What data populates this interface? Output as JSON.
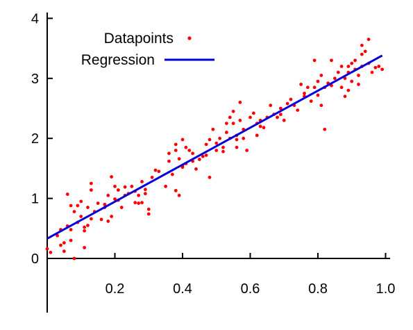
{
  "chart_data": {
    "type": "scatter",
    "title": "",
    "xlabel": "",
    "ylabel": "",
    "xlim": [
      0,
      1.0
    ],
    "ylim": [
      0,
      4
    ],
    "x_ticks": [
      0.2,
      0.4,
      0.6,
      0.8,
      1.0
    ],
    "x_tick_labels": [
      "0.2",
      "0.4",
      "0.6",
      "0.8",
      "1.0"
    ],
    "y_ticks": [
      0,
      1,
      2,
      3,
      4
    ],
    "y_tick_labels": [
      "0",
      "1",
      "2",
      "3",
      "4"
    ],
    "grid": false,
    "legend_position": "top-left",
    "legend": [
      "Datapoints",
      "Regression"
    ],
    "series": [
      {
        "name": "Datapoints",
        "kind": "scatter",
        "color": "#ff0000",
        "points": [
          [
            0.0,
            0.16
          ],
          [
            0.01,
            0.1
          ],
          [
            0.03,
            0.38
          ],
          [
            0.04,
            0.48
          ],
          [
            0.04,
            0.22
          ],
          [
            0.05,
            0.26
          ],
          [
            0.05,
            0.12
          ],
          [
            0.06,
            0.54
          ],
          [
            0.06,
            1.07
          ],
          [
            0.07,
            0.48
          ],
          [
            0.07,
            0.3
          ],
          [
            0.08,
            0.78
          ],
          [
            0.08,
            0.0
          ],
          [
            0.09,
            0.88
          ],
          [
            0.09,
            0.6
          ],
          [
            0.1,
            0.95
          ],
          [
            0.1,
            0.7
          ],
          [
            0.11,
            0.46
          ],
          [
            0.11,
            0.18
          ],
          [
            0.12,
            0.85
          ],
          [
            0.12,
            0.55
          ],
          [
            0.13,
            1.25
          ],
          [
            0.13,
            1.14
          ],
          [
            0.13,
            0.66
          ],
          [
            0.14,
            0.78
          ],
          [
            0.15,
            0.92
          ],
          [
            0.16,
            0.65
          ],
          [
            0.17,
            0.85
          ],
          [
            0.18,
            1.05
          ],
          [
            0.18,
            0.62
          ],
          [
            0.19,
            0.7
          ],
          [
            0.19,
            1.36
          ],
          [
            0.2,
            0.99
          ],
          [
            0.2,
            1.2
          ],
          [
            0.21,
            0.97
          ],
          [
            0.21,
            1.14
          ],
          [
            0.22,
            0.85
          ],
          [
            0.23,
            1.05
          ],
          [
            0.23,
            1.19
          ],
          [
            0.24,
            1.08
          ],
          [
            0.25,
            1.2
          ],
          [
            0.26,
            1.12
          ],
          [
            0.26,
            0.93
          ],
          [
            0.27,
            1.05
          ],
          [
            0.27,
            0.92
          ],
          [
            0.28,
            0.93
          ],
          [
            0.28,
            1.28
          ],
          [
            0.29,
            1.08
          ],
          [
            0.3,
            0.82
          ],
          [
            0.3,
            0.74
          ],
          [
            0.31,
            1.35
          ],
          [
            0.32,
            1.47
          ],
          [
            0.33,
            1.45
          ],
          [
            0.35,
            1.2
          ],
          [
            0.36,
            1.75
          ],
          [
            0.36,
            1.62
          ],
          [
            0.37,
            1.4
          ],
          [
            0.38,
            1.9
          ],
          [
            0.38,
            1.8
          ],
          [
            0.38,
            1.13
          ],
          [
            0.39,
            1.05
          ],
          [
            0.39,
            1.66
          ],
          [
            0.4,
            1.52
          ],
          [
            0.4,
            1.98
          ],
          [
            0.41,
            1.58
          ],
          [
            0.41,
            1.85
          ],
          [
            0.42,
            1.8
          ],
          [
            0.43,
            1.75
          ],
          [
            0.43,
            1.62
          ],
          [
            0.44,
            1.49
          ],
          [
            0.45,
            1.65
          ],
          [
            0.46,
            1.7
          ],
          [
            0.47,
            1.9
          ],
          [
            0.47,
            1.72
          ],
          [
            0.48,
            1.98
          ],
          [
            0.48,
            1.35
          ],
          [
            0.49,
            2.15
          ],
          [
            0.5,
            1.92
          ],
          [
            0.51,
            2.0
          ],
          [
            0.52,
            1.85
          ],
          [
            0.52,
            1.78
          ],
          [
            0.53,
            2.25
          ],
          [
            0.53,
            2.1
          ],
          [
            0.54,
            2.0
          ],
          [
            0.54,
            2.35
          ],
          [
            0.55,
            2.25
          ],
          [
            0.55,
            2.45
          ],
          [
            0.56,
            2.05
          ],
          [
            0.56,
            1.98
          ],
          [
            0.56,
            1.85
          ],
          [
            0.57,
            2.3
          ],
          [
            0.57,
            2.6
          ],
          [
            0.58,
            2.15
          ],
          [
            0.58,
            2.0
          ],
          [
            0.59,
            1.8
          ],
          [
            0.6,
            2.35
          ],
          [
            0.61,
            2.42
          ],
          [
            0.62,
            2.25
          ],
          [
            0.63,
            2.3
          ],
          [
            0.63,
            2.2
          ],
          [
            0.64,
            2.18
          ],
          [
            0.65,
            2.35
          ],
          [
            0.66,
            2.55
          ],
          [
            0.67,
            2.4
          ],
          [
            0.68,
            2.35
          ],
          [
            0.69,
            2.5
          ],
          [
            0.69,
            2.4
          ],
          [
            0.7,
            2.3
          ],
          [
            0.71,
            2.58
          ],
          [
            0.72,
            2.65
          ],
          [
            0.73,
            2.55
          ],
          [
            0.74,
            2.47
          ],
          [
            0.75,
            2.9
          ],
          [
            0.76,
            2.7
          ],
          [
            0.77,
            2.85
          ],
          [
            0.78,
            2.62
          ],
          [
            0.79,
            2.85
          ],
          [
            0.8,
            2.95
          ],
          [
            0.8,
            2.72
          ],
          [
            0.81,
            3.05
          ],
          [
            0.81,
            2.55
          ],
          [
            0.82,
            2.15
          ],
          [
            0.82,
            2.85
          ],
          [
            0.83,
            2.92
          ],
          [
            0.84,
            2.88
          ],
          [
            0.84,
            3.3
          ],
          [
            0.85,
            3.0
          ],
          [
            0.86,
            3.1
          ],
          [
            0.87,
            2.85
          ],
          [
            0.87,
            3.2
          ],
          [
            0.88,
            2.7
          ],
          [
            0.88,
            3.0
          ],
          [
            0.89,
            3.1
          ],
          [
            0.89,
            2.8
          ],
          [
            0.9,
            3.25
          ],
          [
            0.9,
            2.95
          ],
          [
            0.91,
            3.15
          ],
          [
            0.91,
            3.3
          ],
          [
            0.92,
            3.05
          ],
          [
            0.92,
            2.9
          ],
          [
            0.93,
            3.4
          ],
          [
            0.93,
            3.2
          ],
          [
            0.94,
            3.45
          ],
          [
            0.95,
            3.65
          ],
          [
            0.95,
            3.25
          ],
          [
            0.96,
            3.1
          ],
          [
            0.97,
            3.18
          ],
          [
            0.98,
            3.2
          ],
          [
            0.99,
            3.15
          ],
          [
            0.93,
            3.55
          ],
          [
            0.89,
            3.2
          ],
          [
            0.79,
            3.3
          ],
          [
            0.76,
            2.75
          ],
          [
            0.62,
            2.05
          ],
          [
            0.5,
            1.8
          ],
          [
            0.4,
            1.55
          ],
          [
            0.29,
            1.15
          ],
          [
            0.17,
            0.9
          ],
          [
            0.11,
            0.52
          ],
          [
            0.07,
            0.88
          ]
        ]
      },
      {
        "name": "Regression",
        "kind": "line",
        "color": "#0000dd",
        "points": [
          [
            0.0,
            0.33
          ],
          [
            0.99,
            3.38
          ]
        ]
      }
    ]
  }
}
